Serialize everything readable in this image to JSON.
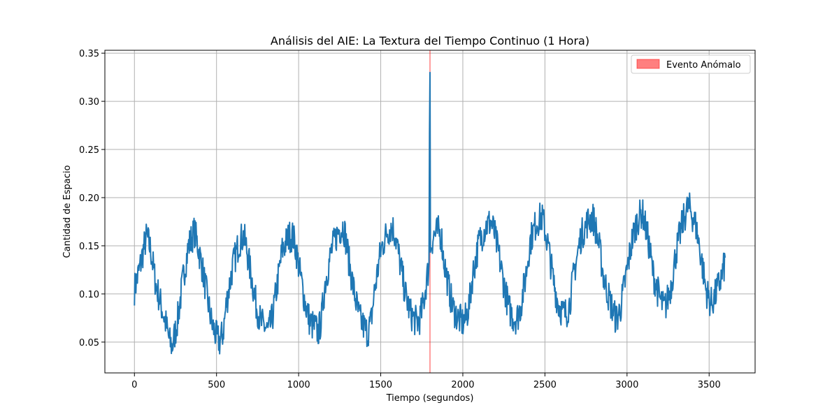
{
  "chart_data": {
    "type": "line",
    "title": "Análisis del AIE: La Textura del Tiempo Continuo (1 Hora)",
    "xlabel": "Tiempo (segundos)",
    "ylabel": "Cantidad de Espacio",
    "xlim": [
      -180,
      3780
    ],
    "ylim": [
      0.018,
      0.353
    ],
    "x_ticks": [
      0,
      500,
      1000,
      1500,
      2000,
      2500,
      3000,
      3500
    ],
    "x_tick_labels": [
      "0",
      "500",
      "1000",
      "1500",
      "2000",
      "2500",
      "3000",
      "3500"
    ],
    "y_ticks": [
      0.05,
      0.1,
      0.15,
      0.2,
      0.25,
      0.3,
      0.35
    ],
    "y_tick_labels": [
      "0.05",
      "0.10",
      "0.15",
      "0.20",
      "0.25",
      "0.30",
      "0.35"
    ],
    "grid": true,
    "legend_position": "top-right",
    "series": [
      {
        "color": "#1f77b4",
        "x": [
          0,
          30,
          60,
          75,
          100,
          130,
          160,
          190,
          215,
          230,
          260,
          300,
          330,
          365,
          380,
          410,
          440,
          470,
          500,
          520,
          540,
          560,
          600,
          640,
          665,
          680,
          710,
          740,
          770,
          800,
          815,
          840,
          870,
          900,
          940,
          965,
          980,
          1010,
          1040,
          1070,
          1100,
          1120,
          1140,
          1160,
          1200,
          1240,
          1270,
          1280,
          1310,
          1340,
          1370,
          1400,
          1420,
          1440,
          1460,
          1500,
          1540,
          1570,
          1590,
          1620,
          1650,
          1680,
          1700,
          1720,
          1740,
          1760,
          1780,
          1795,
          1798,
          1800,
          1802,
          1805,
          1820,
          1850,
          1870,
          1880,
          1910,
          1940,
          1970,
          2000,
          2020,
          2040,
          2060,
          2100,
          2140,
          2170,
          2190,
          2220,
          2250,
          2280,
          2310,
          2330,
          2350,
          2380,
          2410,
          2450,
          2480,
          2490,
          2520,
          2550,
          2580,
          2610,
          2630,
          2650,
          2680,
          2720,
          2760,
          2790,
          2800,
          2830,
          2860,
          2900,
          2930,
          2940,
          2960,
          2990,
          3030,
          3060,
          3090,
          3100,
          3130,
          3160,
          3200,
          3225,
          3240,
          3270,
          3300,
          3340,
          3370,
          3385,
          3420,
          3450,
          3480,
          3510,
          3530,
          3550,
          3580,
          3600
        ],
        "values": [
          0.105,
          0.125,
          0.15,
          0.16,
          0.145,
          0.11,
          0.09,
          0.07,
          0.05,
          0.045,
          0.07,
          0.12,
          0.15,
          0.165,
          0.155,
          0.13,
          0.1,
          0.07,
          0.055,
          0.05,
          0.06,
          0.09,
          0.13,
          0.155,
          0.16,
          0.15,
          0.12,
          0.09,
          0.07,
          0.065,
          0.06,
          0.075,
          0.11,
          0.145,
          0.16,
          0.16,
          0.15,
          0.12,
          0.09,
          0.07,
          0.065,
          0.06,
          0.075,
          0.11,
          0.145,
          0.165,
          0.17,
          0.165,
          0.13,
          0.1,
          0.075,
          0.065,
          0.06,
          0.07,
          0.1,
          0.145,
          0.165,
          0.17,
          0.16,
          0.13,
          0.1,
          0.08,
          0.075,
          0.07,
          0.075,
          0.09,
          0.115,
          0.13,
          0.336,
          0.33,
          0.14,
          0.15,
          0.16,
          0.165,
          0.16,
          0.14,
          0.11,
          0.085,
          0.075,
          0.07,
          0.075,
          0.09,
          0.12,
          0.155,
          0.17,
          0.175,
          0.165,
          0.14,
          0.11,
          0.085,
          0.075,
          0.075,
          0.085,
          0.115,
          0.155,
          0.175,
          0.18,
          0.175,
          0.15,
          0.115,
          0.09,
          0.08,
          0.08,
          0.09,
          0.125,
          0.16,
          0.175,
          0.18,
          0.175,
          0.15,
          0.115,
          0.09,
          0.075,
          0.075,
          0.085,
          0.115,
          0.155,
          0.175,
          0.185,
          0.18,
          0.155,
          0.12,
          0.095,
          0.085,
          0.09,
          0.11,
          0.145,
          0.175,
          0.19,
          0.188,
          0.17,
          0.14,
          0.105,
          0.09,
          0.095,
          0.105,
          0.12,
          0.135
        ]
      }
    ],
    "anomaly": {
      "x": 1800,
      "legend_label": "Evento Anómalo",
      "color": "#ff0000",
      "alpha": 0.5
    }
  }
}
